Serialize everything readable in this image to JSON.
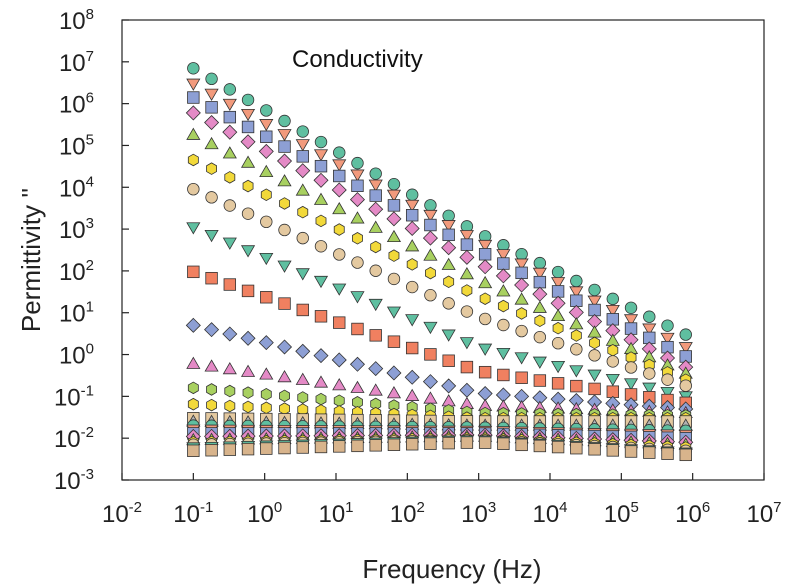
{
  "chart_data": {
    "type": "scatter",
    "title": "",
    "annotation": "Conductivity",
    "xlabel": "Frequency (Hz)",
    "ylabel": "Permittivity ''",
    "xscale": "log",
    "yscale": "log",
    "xlim": [
      0.01,
      10000000
    ],
    "ylim": [
      0.001,
      100000000
    ],
    "x_ticks": [
      {
        "base": "10",
        "exp": "-2"
      },
      {
        "base": "10",
        "exp": "-1"
      },
      {
        "base": "10",
        "exp": "0"
      },
      {
        "base": "10",
        "exp": "1"
      },
      {
        "base": "10",
        "exp": "2"
      },
      {
        "base": "10",
        "exp": "3"
      },
      {
        "base": "10",
        "exp": "4"
      },
      {
        "base": "10",
        "exp": "5"
      },
      {
        "base": "10",
        "exp": "6"
      },
      {
        "base": "10",
        "exp": "7"
      }
    ],
    "y_ticks": [
      {
        "base": "10",
        "exp": "-3"
      },
      {
        "base": "10",
        "exp": "-2"
      },
      {
        "base": "10",
        "exp": "-1"
      },
      {
        "base": "10",
        "exp": "0"
      },
      {
        "base": "10",
        "exp": "1"
      },
      {
        "base": "10",
        "exp": "2"
      },
      {
        "base": "10",
        "exp": "3"
      },
      {
        "base": "10",
        "exp": "4"
      },
      {
        "base": "10",
        "exp": "5"
      },
      {
        "base": "10",
        "exp": "6"
      },
      {
        "base": "10",
        "exp": "7"
      },
      {
        "base": "10",
        "exp": "8"
      }
    ],
    "grid": false,
    "legend": "none",
    "x_start": 0.1,
    "x_end": 800000,
    "points_per_series": 28,
    "series": [
      {
        "marker": "circle",
        "color": "#5fbfa0",
        "values_at": {
          "0.1": 7000000,
          "1000": 800,
          "800000": 3
        }
      },
      {
        "marker": "tri-down",
        "color": "#f29a7c",
        "values_at": {
          "0.1": 3000000,
          "1000": 500,
          "800000": 1.5
        }
      },
      {
        "marker": "square",
        "color": "#8d9fd4",
        "values_at": {
          "0.1": 1400000,
          "1000": 300,
          "800000": 0.9
        }
      },
      {
        "marker": "diamond",
        "color": "#e48ac6",
        "values_at": {
          "0.1": 600000,
          "1000": 150,
          "800000": 0.5
        }
      },
      {
        "marker": "tri-up",
        "color": "#a8d060",
        "values_at": {
          "0.1": 180000,
          "1000": 60,
          "800000": 0.35
        }
      },
      {
        "marker": "hexagon",
        "color": "#f2d93a",
        "values_at": {
          "0.1": 45000,
          "1000": 25,
          "800000": 0.25
        }
      },
      {
        "marker": "circle",
        "color": "#e4c9a0",
        "values_at": {
          "0.1": 9000,
          "1000": 8,
          "800000": 0.18
        }
      },
      {
        "marker": "tri-down",
        "color": "#5fbfa0",
        "values_at": {
          "0.1": 1100,
          "1000": 1.5,
          "800000": 0.1
        }
      },
      {
        "marker": "square",
        "color": "#f08060",
        "values_at": {
          "0.1": 95,
          "1000": 0.4,
          "800000": 0.07
        }
      },
      {
        "marker": "diamond",
        "color": "#8d9fd4",
        "values_at": {
          "0.1": 5,
          "1000": 0.12,
          "800000": 0.05
        }
      },
      {
        "marker": "tri-up",
        "color": "#e48ac6",
        "values_at": {
          "0.1": 0.6,
          "1000": 0.06,
          "800000": 0.04
        }
      },
      {
        "marker": "hexagon",
        "color": "#a8d060",
        "values_at": {
          "0.1": 0.16,
          "1000": 0.04,
          "800000": 0.035
        }
      },
      {
        "marker": "hexagon",
        "color": "#f2d93a",
        "values_at": {
          "0.1": 0.065,
          "1000": 0.03,
          "800000": 0.03
        }
      },
      {
        "marker": "square",
        "color": "#e4c9a0",
        "values_at": {
          "0.1": 0.03,
          "1000": 0.025,
          "800000": 0.025
        }
      },
      {
        "marker": "tri-up",
        "color": "#b3b3b3",
        "values_at": {
          "0.1": 0.025,
          "1000": 0.02,
          "800000": 0.02
        }
      },
      {
        "marker": "circle",
        "color": "#5fbfa0",
        "values_at": {
          "0.1": 0.02,
          "1000": 0.018,
          "800000": 0.015
        }
      },
      {
        "marker": "tri-down",
        "color": "#f29a7c",
        "values_at": {
          "0.1": 0.016,
          "1000": 0.015,
          "800000": 0.012
        }
      },
      {
        "marker": "square",
        "color": "#8d9fd4",
        "values_at": {
          "0.1": 0.013,
          "1000": 0.013,
          "800000": 0.01
        }
      },
      {
        "marker": "diamond",
        "color": "#e48ac6",
        "values_at": {
          "0.1": 0.011,
          "1000": 0.012,
          "800000": 0.008
        }
      },
      {
        "marker": "tri-up",
        "color": "#a8d060",
        "values_at": {
          "0.1": 0.009,
          "1000": 0.011,
          "800000": 0.007
        }
      },
      {
        "marker": "hexagon",
        "color": "#f2d93a",
        "values_at": {
          "0.1": 0.008,
          "1000": 0.01,
          "800000": 0.006
        }
      },
      {
        "marker": "circle",
        "color": "#e4c9a0",
        "values_at": {
          "0.1": 0.007,
          "1000": 0.009,
          "800000": 0.005
        }
      },
      {
        "marker": "tri-down",
        "color": "#5fbfa0",
        "values_at": {
          "0.1": 0.006,
          "1000": 0.009,
          "800000": 0.0045
        }
      },
      {
        "marker": "square",
        "color": "#d8b48c",
        "values_at": {
          "0.1": 0.005,
          "1000": 0.008,
          "800000": 0.004
        }
      }
    ]
  }
}
